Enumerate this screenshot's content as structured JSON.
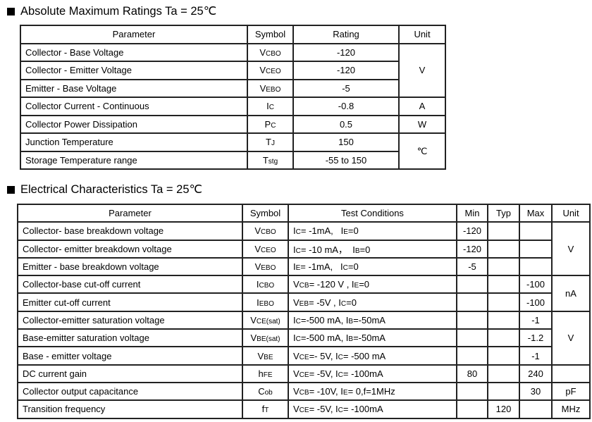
{
  "section1": {
    "title": "Absolute Maximum Ratings Ta = 25℃",
    "headers": [
      "Parameter",
      "Symbol",
      "Rating",
      "Unit"
    ],
    "rows": [
      {
        "parameter": "Collector - Base Voltage",
        "symbol": {
          "main": "V",
          "sub": "CBO"
        },
        "rating": "-120",
        "unit": "V",
        "unit_span": 3
      },
      {
        "parameter": "Collector - Emitter Voltage",
        "symbol": {
          "main": "V",
          "sub": "CEO"
        },
        "rating": "-120"
      },
      {
        "parameter": "Emitter - Base Voltage",
        "symbol": {
          "main": "V",
          "sub": "EBO"
        },
        "rating": "-5"
      },
      {
        "parameter": "Collector Current  - Continuous",
        "symbol": {
          "main": "I",
          "sub": "C"
        },
        "rating": "-0.8",
        "unit": "A",
        "unit_span": 1
      },
      {
        "parameter": "Collector Power Dissipation",
        "symbol": {
          "main": "P",
          "sub": "C"
        },
        "rating": "0.5",
        "unit": "W",
        "unit_span": 1
      },
      {
        "parameter": "Junction Temperature",
        "symbol": {
          "main": "T",
          "sub": "J"
        },
        "rating": "150",
        "unit": "℃",
        "unit_span": 2
      },
      {
        "parameter": "Storage Temperature range",
        "symbol": {
          "main": "T",
          "sub": "stg"
        },
        "rating": "-55 to 150"
      }
    ]
  },
  "section2": {
    "title": "Electrical Characteristics Ta = 25℃",
    "headers": [
      "Parameter",
      "Symbol",
      "Test Conditions",
      "Min",
      "Typ",
      "Max",
      "Unit"
    ],
    "rows": [
      {
        "parameter": "Collector- base breakdown voltage",
        "symbol": {
          "main": "V",
          "sub": "CBO"
        },
        "conditions": [
          [
            "I",
            0
          ],
          [
            "C",
            1
          ],
          [
            "= -1mA,   ",
            0
          ],
          [
            "I",
            0
          ],
          [
            "E",
            1
          ],
          [
            "=0",
            0
          ]
        ],
        "min": "-120",
        "typ": "",
        "max": "",
        "unit": "V",
        "unit_span": 3
      },
      {
        "parameter": "Collector- emitter breakdown voltage",
        "symbol": {
          "main": "V",
          "sub": "CEO"
        },
        "conditions": [
          [
            "I",
            0
          ],
          [
            "C",
            1
          ],
          [
            "= -10 mA，  ",
            0
          ],
          [
            "I",
            0
          ],
          [
            "B",
            1
          ],
          [
            "=0",
            0
          ]
        ],
        "min": "-120",
        "typ": "",
        "max": ""
      },
      {
        "parameter": "Emitter - base breakdown voltage",
        "symbol": {
          "main": "V",
          "sub": "EBO"
        },
        "conditions": [
          [
            "I",
            0
          ],
          [
            "E",
            1
          ],
          [
            "= -1mA,   ",
            0
          ],
          [
            "I",
            0
          ],
          [
            "C",
            1
          ],
          [
            "=0",
            0
          ]
        ],
        "min": "-5",
        "typ": "",
        "max": ""
      },
      {
        "parameter": "Collector-base cut-off current",
        "symbol": {
          "main": "I",
          "sub": "CBO"
        },
        "conditions": [
          [
            "V",
            0
          ],
          [
            "CB",
            1
          ],
          [
            "= -120 V , ",
            0
          ],
          [
            "I",
            0
          ],
          [
            "E",
            1
          ],
          [
            "=0",
            0
          ]
        ],
        "min": "",
        "typ": "",
        "max": "-100",
        "unit": "nA",
        "unit_span": 2
      },
      {
        "parameter": "Emitter cut-off current",
        "symbol": {
          "main": "I",
          "sub": "EBO"
        },
        "conditions": [
          [
            "V",
            0
          ],
          [
            "EB",
            1
          ],
          [
            "= -5V , I",
            0
          ],
          [
            "C",
            1
          ],
          [
            "=0",
            0
          ]
        ],
        "min": "",
        "typ": "",
        "max": "-100"
      },
      {
        "parameter": "Collector-emitter saturation voltage",
        "symbol": {
          "main": "V",
          "sub": "CE(sat)"
        },
        "conditions": [
          [
            "I",
            0
          ],
          [
            "C",
            1
          ],
          [
            "=-500 mA, I",
            0
          ],
          [
            "B",
            1
          ],
          [
            "=-50mA",
            0
          ]
        ],
        "min": "",
        "typ": "",
        "max": "-1",
        "unit": "V",
        "unit_span": 3
      },
      {
        "parameter": "Base-emitter saturation voltage",
        "symbol": {
          "main": "V",
          "sub": "BE(sat)"
        },
        "conditions": [
          [
            "I",
            0
          ],
          [
            "C",
            1
          ],
          [
            "=-500 mA, I",
            0
          ],
          [
            "B",
            1
          ],
          [
            "=-50mA",
            0
          ]
        ],
        "min": "",
        "typ": "",
        "max": "-1.2"
      },
      {
        "parameter": "Base - emitter voltage",
        "symbol": {
          "main": "V",
          "sub": "BE"
        },
        "conditions": [
          [
            "V",
            0
          ],
          [
            "CE",
            1
          ],
          [
            "=- 5V, I",
            0
          ],
          [
            "C",
            1
          ],
          [
            "= -500 mA",
            0
          ]
        ],
        "min": "",
        "typ": "",
        "max": "-1"
      },
      {
        "parameter": "DC current gain",
        "symbol": {
          "main": "h",
          "sub": "FE"
        },
        "conditions": [
          [
            "V",
            0
          ],
          [
            "CE",
            1
          ],
          [
            "= -5V, I",
            0
          ],
          [
            "C",
            1
          ],
          [
            "= -100mA",
            0
          ]
        ],
        "min": "80",
        "typ": "",
        "max": "240",
        "unit": "",
        "unit_span": 1
      },
      {
        "parameter": "Collector output  capacitance",
        "symbol": {
          "main": "C",
          "sub": "ob"
        },
        "conditions": [
          [
            "V",
            0
          ],
          [
            "CB",
            1
          ],
          [
            "= -10V, I",
            0
          ],
          [
            "E",
            1
          ],
          [
            "= 0,f=1MHz",
            0
          ]
        ],
        "min": "",
        "typ": "",
        "max": "30",
        "unit": "pF",
        "unit_span": 1
      },
      {
        "parameter": "Transition frequency",
        "symbol": {
          "main": "f",
          "sub": "T"
        },
        "conditions": [
          [
            "V",
            0
          ],
          [
            "CE",
            1
          ],
          [
            "= -5V, I",
            0
          ],
          [
            "C",
            1
          ],
          [
            "= -100mA",
            0
          ]
        ],
        "min": "",
        "typ": "120",
        "max": "",
        "unit": "MHz",
        "unit_span": 1
      }
    ]
  }
}
